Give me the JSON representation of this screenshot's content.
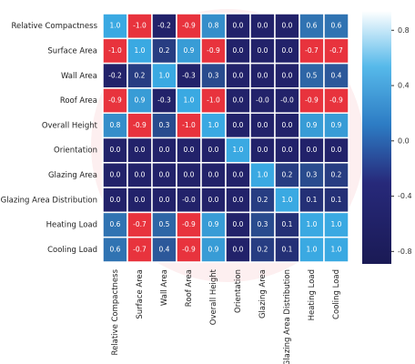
{
  "chart_data": {
    "type": "heatmap",
    "rows": [
      "Relative Compactness",
      "Surface  Area",
      "Wall Area",
      "Roof Area",
      "Overall Height",
      "Orientation",
      "Glazing Area",
      "Glazing Area Distribution",
      "Heating Load",
      "Cooling Load"
    ],
    "columns": [
      "Relative Compactness",
      "Surface Area",
      "Wall Area",
      "Roof Area",
      "Overall Height",
      "Orientation",
      "Glazing Area",
      "Glazing Area Distribution",
      "Heating Load",
      "Cooling Load"
    ],
    "values": [
      [
        1,
        -1,
        -0.2,
        -0.9,
        0.8,
        0,
        0,
        0,
        0.6,
        0.6
      ],
      [
        -1,
        1,
        0.2,
        0.9,
        -0.9,
        0,
        0,
        0,
        -0.7,
        -0.7
      ],
      [
        -0.2,
        0.2,
        1,
        -0.3,
        0.3,
        0,
        0,
        0,
        0.5,
        0.4
      ],
      [
        -0.9,
        0.9,
        -0.3,
        1,
        -1,
        0,
        0,
        0,
        -0.9,
        -0.9
      ],
      [
        0.8,
        -0.9,
        0.3,
        -1,
        1,
        0,
        0,
        0,
        0.9,
        0.9
      ],
      [
        0,
        0,
        0,
        0,
        0,
        1,
        0,
        0,
        0,
        0
      ],
      [
        0,
        0,
        0,
        0,
        0,
        0,
        1,
        0.2,
        0.3,
        0.2
      ],
      [
        0,
        0,
        0,
        0,
        0,
        0,
        0.2,
        1,
        0.1,
        0.1
      ],
      [
        0.6,
        -0.7,
        0.5,
        -0.9,
        0.9,
        0,
        0.3,
        0.1,
        1,
        1
      ],
      [
        0.6,
        -0.7,
        0.4,
        -0.9,
        0.9,
        0,
        0.2,
        0.1,
        1,
        1
      ]
    ],
    "value_labels": [
      [
        "1.0",
        "-1.0",
        "-0.2",
        "-0.9",
        "0.8",
        "0.0",
        "0.0",
        "0.0",
        "0.6",
        "0.6"
      ],
      [
        "-1.0",
        "1.0",
        "0.2",
        "0.9",
        "-0.9",
        "0.0",
        "0.0",
        "0.0",
        "-0.7",
        "-0.7"
      ],
      [
        "-0.2",
        "0.2",
        "1.0",
        "-0.3",
        "0.3",
        "0.0",
        "0.0",
        "0.0",
        "0.5",
        "0.4"
      ],
      [
        "-0.9",
        "0.9",
        "-0.3",
        "1.0",
        "-1.0",
        "0.0",
        "-0.0",
        "-0.0",
        "-0.9",
        "-0.9"
      ],
      [
        "0.8",
        "-0.9",
        "0.3",
        "-1.0",
        "1.0",
        "0.0",
        "0.0",
        "0.0",
        "0.9",
        "0.9"
      ],
      [
        "0.0",
        "0.0",
        "0.0",
        "0.0",
        "0.0",
        "1.0",
        "0.0",
        "0.0",
        "0.0",
        "0.0"
      ],
      [
        "0.0",
        "0.0",
        "0.0",
        "0.0",
        "0.0",
        "0.0",
        "1.0",
        "0.2",
        "0.3",
        "0.2"
      ],
      [
        "0.0",
        "0.0",
        "0.0",
        "-0.0",
        "0.0",
        "0.0",
        "0.2",
        "1.0",
        "0.1",
        "0.1"
      ],
      [
        "0.6",
        "-0.7",
        "0.5",
        "-0.9",
        "0.9",
        "0.0",
        "0.3",
        "0.1",
        "1.0",
        "1.0"
      ],
      [
        "0.6",
        "-0.7",
        "0.4",
        "-0.9",
        "0.9",
        "0.0",
        "0.2",
        "0.1",
        "1.0",
        "1.0"
      ]
    ],
    "clim": [
      -0.89,
      0.94
    ],
    "cticks": [
      0.8,
      {
        "value": 0.4,
        "label": "0.4"
      },
      {
        "value": 0,
        "label": "0.0"
      },
      -0.4,
      -0.8
    ]
  }
}
